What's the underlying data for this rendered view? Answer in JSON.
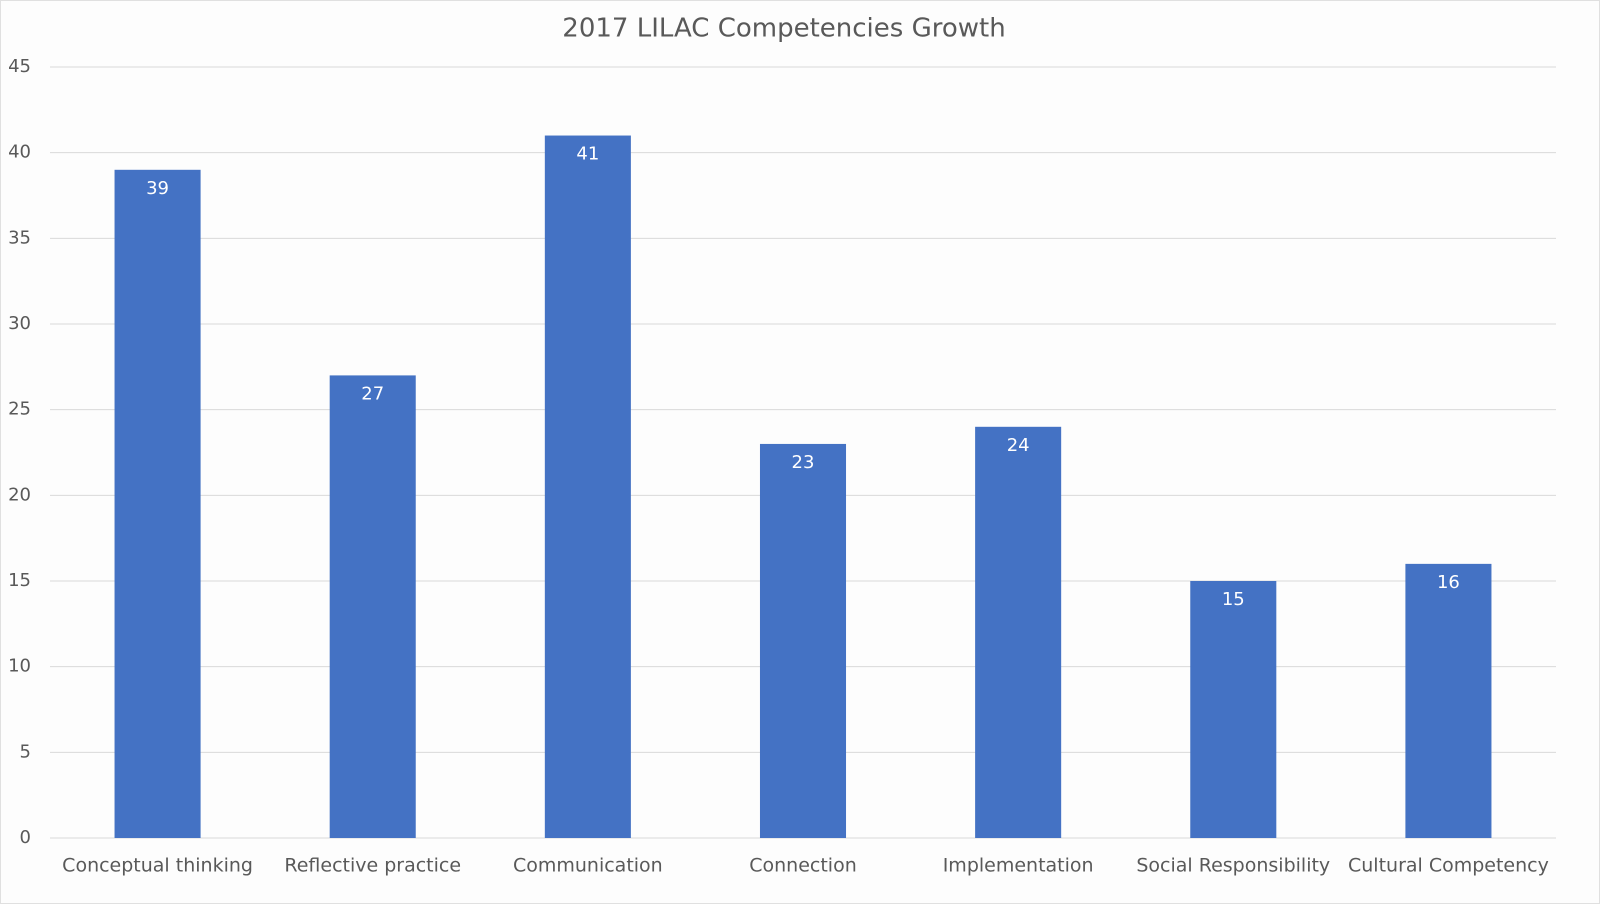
{
  "chart_data": {
    "type": "bar",
    "title": "2017 LILAC Competencies Growth",
    "categories": [
      "Conceptual thinking",
      "Reflective practice",
      "Communication",
      "Connection",
      "Implementation",
      "Social Responsibility",
      "Cultural Competency"
    ],
    "values": [
      39,
      27,
      41,
      23,
      24,
      15,
      16
    ],
    "color": "#4472c4",
    "ylim": [
      0,
      45
    ],
    "yticks": [
      0,
      5,
      10,
      15,
      20,
      25,
      30,
      35,
      40,
      45
    ],
    "grid": true
  }
}
